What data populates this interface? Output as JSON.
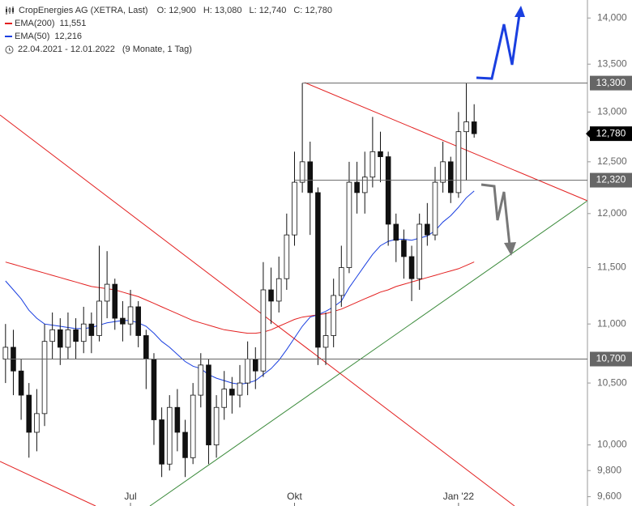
{
  "chart_data": {
    "type": "candlestick",
    "title": "CropEnergies AG (XETRA, Last)",
    "ohlc": [
      {
        "name": "O:",
        "label": "12,900"
      },
      {
        "name": "H:",
        "label": "13,080"
      },
      {
        "name": "L:",
        "label": "12,740"
      },
      {
        "name": "C:",
        "label": "12,780"
      }
    ],
    "period": "22.04.2021 - 12.01.2022",
    "period_note": "(9 Monate, 1 Tag)",
    "log_y": true,
    "ylim": [
      9530,
      14200
    ],
    "yticks": [
      {
        "value": 9600,
        "label": "9,600"
      },
      {
        "value": 9800,
        "label": "9,800"
      },
      {
        "value": 10000,
        "label": "10,000"
      },
      {
        "value": 10500,
        "label": "10,500"
      },
      {
        "value": 11000,
        "label": "11,000"
      },
      {
        "value": 11500,
        "label": "11,500"
      },
      {
        "value": 12000,
        "label": "12,000"
      },
      {
        "value": 12500,
        "label": "12,500"
      },
      {
        "value": 13000,
        "label": "13,000"
      },
      {
        "value": 13500,
        "label": "13,500"
      },
      {
        "value": 14000,
        "label": "14,000"
      }
    ],
    "categories": [
      null,
      null,
      null,
      null,
      null,
      null,
      null,
      null,
      null,
      null,
      null,
      null,
      null,
      null,
      null,
      null,
      "Jul",
      null,
      null,
      null,
      null,
      null,
      null,
      null,
      null,
      null,
      null,
      null,
      null,
      null,
      null,
      null,
      null,
      null,
      null,
      null,
      null,
      "Okt",
      null,
      null,
      null,
      null,
      null,
      null,
      null,
      null,
      null,
      null,
      null,
      null,
      null,
      null,
      null,
      null,
      null,
      null,
      null,
      null,
      "Jan '22",
      null,
      null
    ],
    "candles": {
      "open": [
        10700,
        10800,
        10600,
        10400,
        10100,
        10250,
        10850,
        10950,
        10800,
        10950,
        10850,
        11000,
        10900,
        11200,
        11350,
        11050,
        11000,
        11150,
        10900,
        10700,
        10200,
        9850,
        10300,
        10100,
        9900,
        10400,
        10650,
        10000,
        10300,
        10450,
        10400,
        10500,
        10700,
        10600,
        11300,
        11200,
        11400,
        11800,
        12300,
        12500,
        12200,
        10800,
        10900,
        11250,
        11500,
        12300,
        12200,
        12350,
        12600,
        12550,
        11900,
        11750,
        11600,
        11400,
        11900,
        11800,
        12300,
        12500,
        12200,
        12800,
        12900
      ],
      "high": [
        11000,
        10950,
        10700,
        10500,
        10450,
        11000,
        11100,
        11050,
        11100,
        11050,
        11150,
        11100,
        11700,
        11650,
        11400,
        11200,
        11300,
        11200,
        10950,
        10750,
        10300,
        10400,
        10450,
        10200,
        10500,
        10750,
        10700,
        10400,
        10600,
        10550,
        10650,
        10850,
        10800,
        11550,
        11500,
        11600,
        12000,
        12600,
        13300,
        12700,
        12250,
        11100,
        11400,
        11700,
        12500,
        12500,
        12600,
        12950,
        12800,
        12600,
        12000,
        11850,
        11700,
        12000,
        12100,
        12450,
        12700,
        12550,
        13000,
        13300,
        13080
      ],
      "low": [
        10500,
        10400,
        10200,
        9900,
        9950,
        10150,
        10700,
        10650,
        10700,
        10700,
        10750,
        10750,
        10850,
        11050,
        10950,
        10850,
        10900,
        10800,
        10450,
        10000,
        9750,
        9800,
        9950,
        9750,
        9850,
        10300,
        9850,
        9900,
        10200,
        10250,
        10300,
        10400,
        10450,
        10550,
        11000,
        11100,
        11300,
        11700,
        12200,
        11800,
        10650,
        10650,
        10800,
        11150,
        11450,
        12000,
        12000,
        12250,
        12300,
        11700,
        11550,
        11400,
        11200,
        11300,
        11700,
        11750,
        12200,
        12100,
        12150,
        12320,
        12740
      ],
      "close": [
        10800,
        10600,
        10400,
        10100,
        10250,
        10850,
        10950,
        10800,
        10950,
        10850,
        11000,
        10900,
        11200,
        11350,
        11050,
        11000,
        11150,
        10900,
        10700,
        10200,
        9850,
        10300,
        10100,
        9900,
        10400,
        10650,
        10000,
        10300,
        10450,
        10400,
        10500,
        10700,
        10600,
        11300,
        11200,
        11400,
        11800,
        12300,
        12500,
        12200,
        10800,
        10900,
        11250,
        11500,
        12300,
        12200,
        12350,
        12600,
        12550,
        11900,
        11750,
        11600,
        11400,
        11900,
        11800,
        12300,
        12500,
        12200,
        12800,
        12900,
        12780
      ]
    },
    "series": [
      {
        "name": "EMA(200)",
        "color": "#e32020",
        "last_label": "11,551",
        "values": [
          11550,
          11530,
          11510,
          11490,
          11470,
          11450,
          11430,
          11410,
          11390,
          11370,
          11350,
          11330,
          11320,
          11310,
          11300,
          11280,
          11260,
          11240,
          11210,
          11180,
          11150,
          11120,
          11090,
          11060,
          11030,
          11010,
          10990,
          10970,
          10950,
          10940,
          10930,
          10920,
          10920,
          10930,
          10950,
          10980,
          11010,
          11040,
          11060,
          11070,
          11080,
          11090,
          11110,
          11130,
          11160,
          11190,
          11220,
          11250,
          11280,
          11300,
          11330,
          11350,
          11370,
          11390,
          11410,
          11430,
          11450,
          11470,
          11490,
          11520,
          11551
        ]
      },
      {
        "name": "EMA(50)",
        "color": "#1a3fe0",
        "last_label": "12,216",
        "values": [
          11380,
          11300,
          11220,
          11120,
          11050,
          11000,
          10990,
          10980,
          10970,
          10960,
          10960,
          10970,
          10990,
          11010,
          11020,
          11030,
          11030,
          11010,
          10980,
          10920,
          10850,
          10800,
          10740,
          10680,
          10640,
          10620,
          10570,
          10540,
          10520,
          10500,
          10490,
          10500,
          10520,
          10570,
          10620,
          10690,
          10780,
          10880,
          10980,
          11060,
          11080,
          11110,
          11150,
          11200,
          11320,
          11420,
          11520,
          11620,
          11700,
          11740,
          11760,
          11760,
          11750,
          11770,
          11790,
          11840,
          11920,
          11980,
          12060,
          12150,
          12216
        ]
      }
    ],
    "levels": [
      {
        "value": 13300,
        "label": "13,300"
      },
      {
        "value": 12320,
        "label": "12,320"
      },
      {
        "value": 10700,
        "label": "10,700"
      }
    ],
    "last_price": {
      "value": 12780,
      "label": "12,780"
    }
  }
}
